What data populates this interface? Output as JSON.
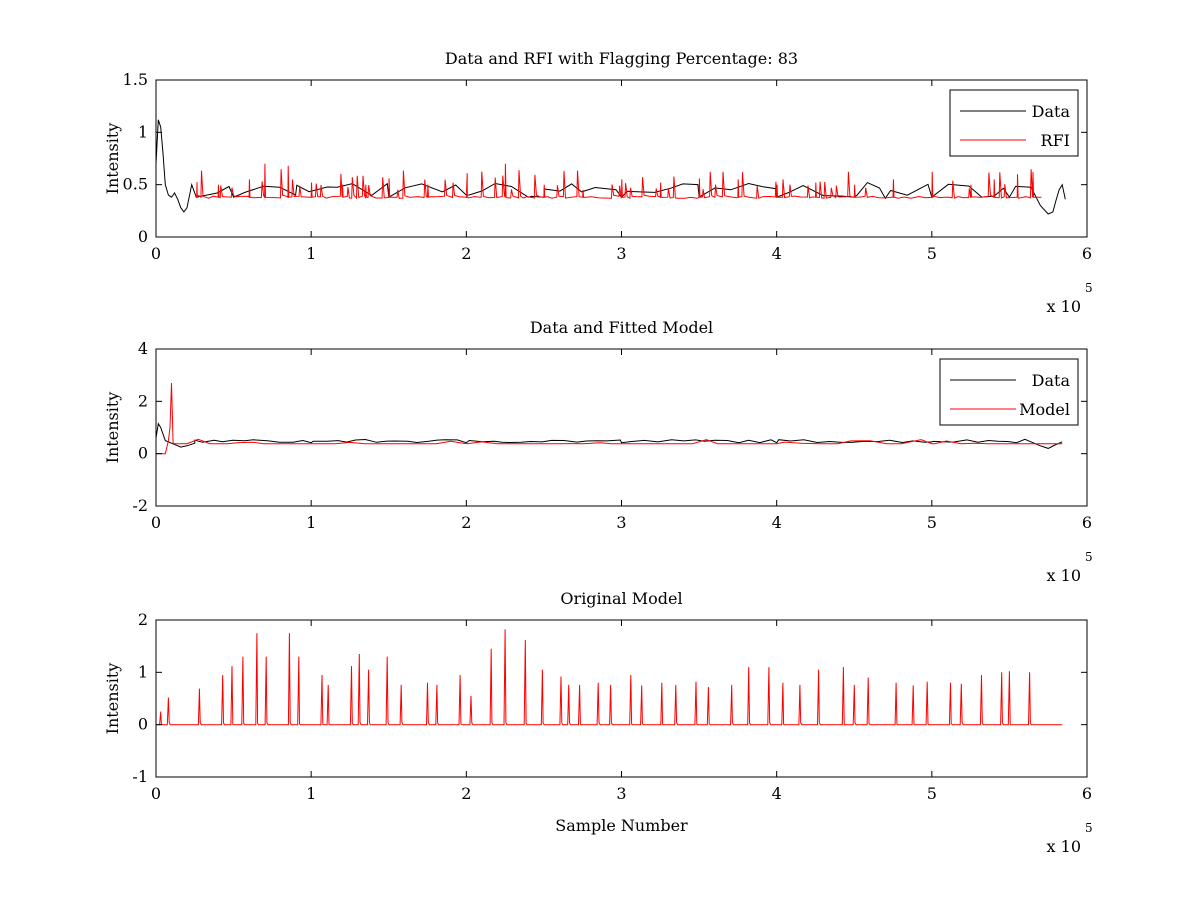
{
  "chart_data": [
    {
      "type": "line",
      "title": "Data and RFI with Flagging Percentage: 83",
      "xlabel": "",
      "ylabel": "Intensity",
      "xlim": [
        0,
        600000
      ],
      "ylim": [
        0,
        1.5
      ],
      "xticks": [
        "0",
        "1",
        "2",
        "3",
        "4",
        "5",
        "6"
      ],
      "yticks": [
        "0",
        "0.5",
        "1",
        "1.5"
      ],
      "x_multiplier": {
        "base": "x 10",
        "exponent": "5"
      },
      "legend": {
        "position": "top-right",
        "entries": [
          "Data",
          "RFI"
        ]
      },
      "series": [
        {
          "name": "Data",
          "color": "#000000",
          "x": [
            0,
            1500,
            3000,
            4500,
            6000,
            8000,
            10000,
            12000,
            14000,
            16000,
            18000,
            20000,
            23000,
            26000,
            50000,
            90000,
            150000,
            200000,
            240000,
            250000,
            300000,
            350000,
            400000,
            450000,
            470000,
            500000,
            550000,
            570000,
            575000,
            578000,
            580000,
            582000,
            584000,
            586000
          ],
          "y": [
            0.7,
            1.12,
            1.05,
            0.8,
            0.5,
            0.4,
            0.38,
            0.42,
            0.36,
            0.28,
            0.24,
            0.28,
            0.5,
            0.38,
            0.38,
            0.4,
            0.38,
            0.4,
            0.38,
            0.38,
            0.38,
            0.38,
            0.38,
            0.38,
            0.37,
            0.38,
            0.38,
            0.3,
            0.22,
            0.24,
            0.35,
            0.45,
            0.5,
            0.36
          ]
        },
        {
          "name": "RFI",
          "color": "#ff0000",
          "x": [
            26000,
            40000,
            60000,
            70000,
            85000,
            100000,
            120000,
            135000,
            150000,
            175000,
            200000,
            225000,
            250000,
            275000,
            300000,
            325000,
            350000,
            375000,
            400000,
            425000,
            450000,
            475000,
            500000,
            525000,
            540000,
            555000,
            565000,
            570000
          ],
          "y": [
            0.38,
            0.5,
            0.55,
            0.7,
            0.68,
            0.52,
            0.5,
            0.5,
            0.56,
            0.5,
            0.45,
            0.7,
            0.5,
            0.45,
            0.55,
            0.52,
            0.56,
            0.55,
            0.5,
            0.52,
            0.5,
            0.55,
            0.5,
            0.5,
            0.55,
            0.6,
            0.62,
            0.38
          ]
        }
      ]
    },
    {
      "type": "line",
      "title": "Data and Fitted Model",
      "xlabel": "",
      "ylabel": "Intensity",
      "xlim": [
        0,
        600000
      ],
      "ylim": [
        -2,
        4
      ],
      "xticks": [
        "0",
        "1",
        "2",
        "3",
        "4",
        "5",
        "6"
      ],
      "yticks": [
        "-2",
        "0",
        "2",
        "4"
      ],
      "x_multiplier": {
        "base": "x 10",
        "exponent": "5"
      },
      "legend": {
        "position": "top-right",
        "entries": [
          "Data",
          "Model"
        ]
      },
      "series": [
        {
          "name": "Data",
          "color": "#000000",
          "x": [
            0,
            1500,
            3000,
            6000,
            10000,
            16000,
            20000,
            25000,
            100000,
            200000,
            300000,
            400000,
            500000,
            560000,
            570000,
            575000,
            580000,
            584000
          ],
          "y": [
            0.6,
            1.15,
            1.0,
            0.5,
            0.4,
            0.25,
            0.3,
            0.4,
            0.42,
            0.42,
            0.42,
            0.42,
            0.45,
            0.55,
            0.3,
            0.2,
            0.35,
            0.45
          ]
        },
        {
          "name": "Model",
          "color": "#ff0000",
          "x": [
            0,
            3000,
            6000,
            8000,
            9000,
            10000,
            11000,
            12000,
            20000,
            100000,
            200000,
            300000,
            400000,
            500000,
            584000
          ],
          "y": [
            0,
            0,
            0,
            0.5,
            1.0,
            2.7,
            0.4,
            0.38,
            0.38,
            0.38,
            0.38,
            0.38,
            0.38,
            0.38,
            0.38
          ]
        }
      ]
    },
    {
      "type": "line",
      "title": "Original Model",
      "xlabel": "Sample Number",
      "ylabel": "Intensity",
      "xlim": [
        0,
        600000
      ],
      "ylim": [
        -1,
        2
      ],
      "xticks": [
        "0",
        "1",
        "2",
        "3",
        "4",
        "5",
        "6"
      ],
      "yticks": [
        "-1",
        "0",
        "1",
        "2"
      ],
      "x_multiplier": {
        "base": "x 10",
        "exponent": "5"
      },
      "series": [
        {
          "name": "",
          "color": "#ff0000",
          "peaks_x": [
            3000,
            8000,
            28000,
            43000,
            49000,
            56000,
            65000,
            71000,
            86000,
            92000,
            107000,
            111000,
            126000,
            131000,
            137000,
            149000,
            158000,
            175000,
            181000,
            196000,
            203000,
            216000,
            225000,
            238000,
            249000,
            261000,
            266000,
            273000,
            285000,
            293000,
            306000,
            313000,
            326000,
            335000,
            348000,
            356000,
            371000,
            382000,
            395000,
            404000,
            415000,
            427000,
            443000,
            450000,
            459000,
            477000,
            488000,
            497000,
            512000,
            519000,
            532000,
            545000,
            550000,
            563000
          ],
          "peaks_y": [
            0.25,
            0.52,
            0.69,
            0.95,
            1.12,
            1.3,
            1.75,
            1.3,
            1.75,
            1.3,
            0.95,
            0.76,
            1.12,
            1.35,
            1.05,
            1.3,
            0.76,
            0.8,
            0.76,
            0.95,
            0.55,
            1.45,
            1.82,
            1.62,
            1.05,
            0.92,
            0.76,
            0.76,
            0.8,
            0.76,
            0.95,
            0.75,
            0.8,
            0.76,
            0.82,
            0.72,
            0.76,
            1.1,
            1.1,
            0.8,
            0.76,
            1.05,
            1.1,
            0.76,
            0.9,
            0.8,
            0.75,
            0.82,
            0.8,
            0.78,
            0.95,
            1.0,
            1.02,
            1.0
          ],
          "baseline": 0,
          "x_end": 584000
        }
      ]
    }
  ]
}
